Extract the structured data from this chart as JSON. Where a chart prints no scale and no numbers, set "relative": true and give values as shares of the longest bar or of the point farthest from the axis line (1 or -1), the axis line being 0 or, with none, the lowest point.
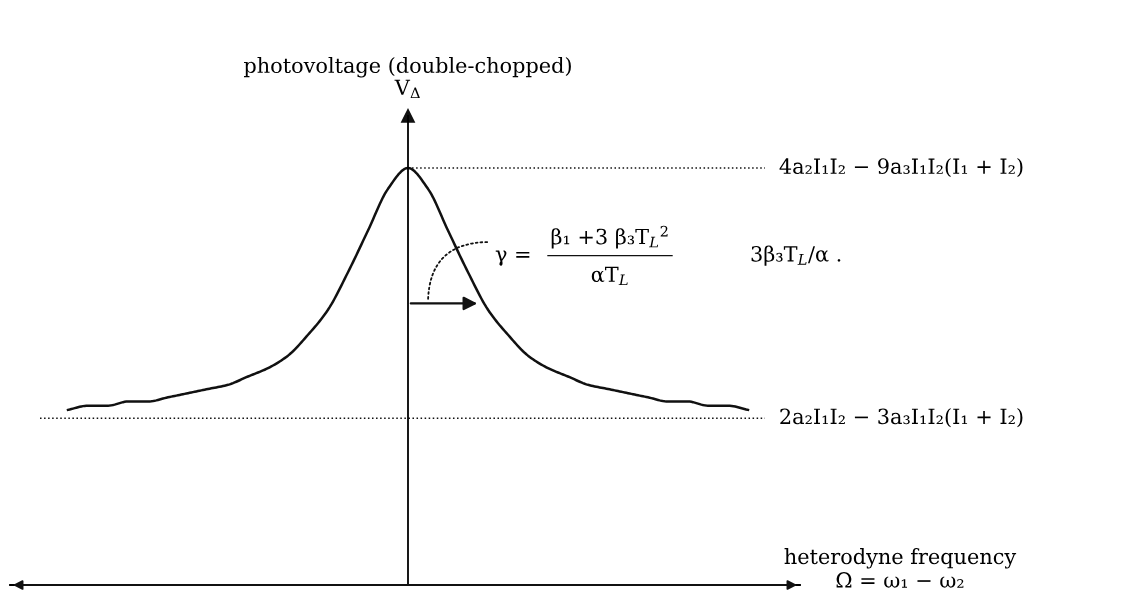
{
  "chart_data": {
    "type": "line",
    "relative": true,
    "xlabel": "heterodyne frequency\nΩ = ω₁ − ω₂",
    "ylabel": "photovoltage (double-chopped)\nV$_{Δ}$",
    "categories": [
      null,
      null,
      null,
      null,
      null,
      null,
      null,
      null,
      null,
      null,
      null,
      null,
      null,
      null,
      null,
      null,
      null,
      null,
      null,
      null,
      null,
      null,
      null,
      null,
      null,
      null,
      null,
      null,
      null,
      null,
      null,
      null,
      null,
      null,
      null
    ],
    "series": [
      {
        "color": "#111111",
        "values": [
          0.42,
          0.43,
          0.43,
          0.44,
          0.44,
          0.45,
          0.46,
          0.47,
          0.48,
          0.5,
          0.52,
          0.55,
          0.6,
          0.66,
          0.75,
          0.85,
          0.95,
          1.0,
          0.95,
          0.85,
          0.75,
          0.66,
          0.6,
          0.55,
          0.52,
          0.5,
          0.48,
          0.47,
          0.46,
          0.45,
          0.44,
          0.44,
          0.43,
          0.43,
          0.42
        ]
      }
    ],
    "ref_lines": [
      {
        "axis": "y",
        "value": 1.0,
        "label": "4a₂I₁I₂ − 9a₃I₁I₂(I₁ + I₂)",
        "color": "#111111",
        "line_style": "dotted"
      },
      {
        "axis": "y",
        "value": 0.4,
        "label": "2a₂I₁I₂ − 3a₃I₁I₂(I₁ + I₂)",
        "color": "#111111",
        "line_style": "dotted"
      }
    ],
    "annotations": [
      "γ =",
      "β₁ +3 β₃T$_{L}$$^{2}$",
      "αT$_{L}$",
      "3β₃T$_{L}$/α ."
    ],
    "line_style": "solid",
    "marker": "none"
  }
}
